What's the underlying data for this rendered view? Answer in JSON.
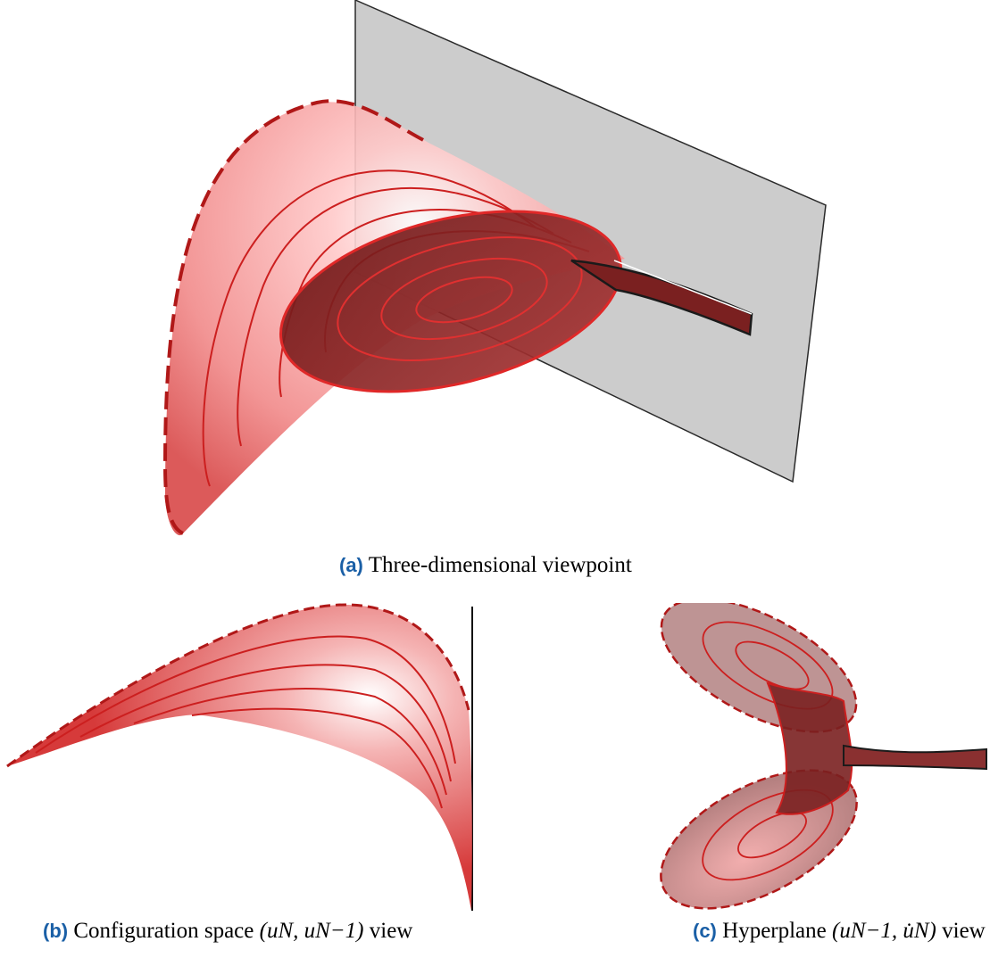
{
  "figure": {
    "panels": [
      {
        "id": "a",
        "tag": "(a)",
        "caption": "Three-dimensional viewpoint"
      },
      {
        "id": "b",
        "tag": "(b)",
        "caption_prefix": "Configuration space",
        "caption_math": "(uN, uN−1)",
        "caption_suffix": "view"
      },
      {
        "id": "c",
        "tag": "(c)",
        "caption_prefix": "Hyperplane",
        "caption_math": "(uN−1, u̇N)",
        "caption_suffix": "view"
      }
    ],
    "colors": {
      "surface_light": "#f7a0a0",
      "surface_mid": "#e85a5a",
      "surface_dark": "#7a1f1f",
      "curve": "#cc1f1f",
      "plane": "#cccccc",
      "tag": "#1a5fa6"
    }
  }
}
